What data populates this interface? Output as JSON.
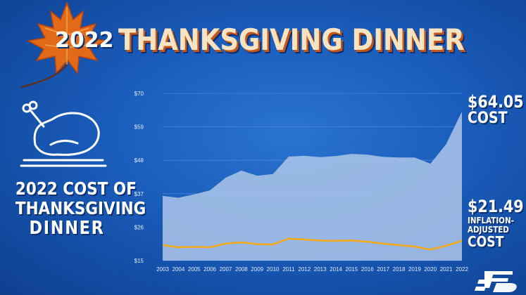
{
  "title": {
    "year": "2022",
    "main": "THANKSGIVING DINNER"
  },
  "caption": {
    "line1": "2022 COST OF",
    "line2": "THANKSGIVING",
    "line3": "DINNER"
  },
  "callouts": {
    "cost_value": "$64.05",
    "cost_label": "COST",
    "adjusted_value": "$21.49",
    "adjusted_label1": "INFLATION-",
    "adjusted_label2": "ADJUSTED",
    "adjusted_label3": "COST"
  },
  "colors": {
    "area": "#a9c3e8",
    "line": "#f2a81d",
    "background": "#1a5cba"
  },
  "icons": {
    "turkey": "roast-turkey-icon",
    "leaf": "maple-leaf-icon",
    "logo": "farm-bureau-logo-icon"
  },
  "chart_data": {
    "type": "area",
    "x": [
      2003,
      2004,
      2005,
      2006,
      2007,
      2008,
      2009,
      2010,
      2011,
      2012,
      2013,
      2014,
      2015,
      2016,
      2017,
      2018,
      2019,
      2020,
      2021,
      2022
    ],
    "x_labels": [
      "2003",
      "2004",
      "2005",
      "2006",
      "2007",
      "2008",
      "2009",
      "2010",
      "2011",
      "2012",
      "2013",
      "2014",
      "2015",
      "2016",
      "2017",
      "2018",
      "2019",
      "2020",
      "2021",
      "2022"
    ],
    "series": [
      {
        "name": "COST",
        "render": "area",
        "values": [
          36.28,
          35.68,
          36.78,
          38.1,
          42.26,
          44.61,
          42.91,
          43.47,
          49.2,
          49.48,
          49.04,
          49.41,
          50.11,
          49.87,
          49.12,
          48.9,
          48.91,
          46.9,
          53.31,
          64.05
        ]
      },
      {
        "name": "INFLATION-ADJUSTED COST",
        "render": "line",
        "values": [
          20.1,
          19.4,
          19.5,
          19.4,
          20.6,
          21.0,
          20.4,
          20.3,
          22.2,
          21.9,
          21.6,
          21.5,
          21.6,
          21.2,
          20.6,
          20.1,
          19.6,
          18.6,
          19.9,
          21.49
        ]
      }
    ],
    "y_ticks": [
      15,
      26,
      37,
      48,
      59,
      70
    ],
    "y_tick_labels": [
      "$15",
      "$26",
      "$37",
      "$48",
      "$59",
      "$70"
    ],
    "ylim": [
      15,
      70
    ],
    "grid": true
  }
}
